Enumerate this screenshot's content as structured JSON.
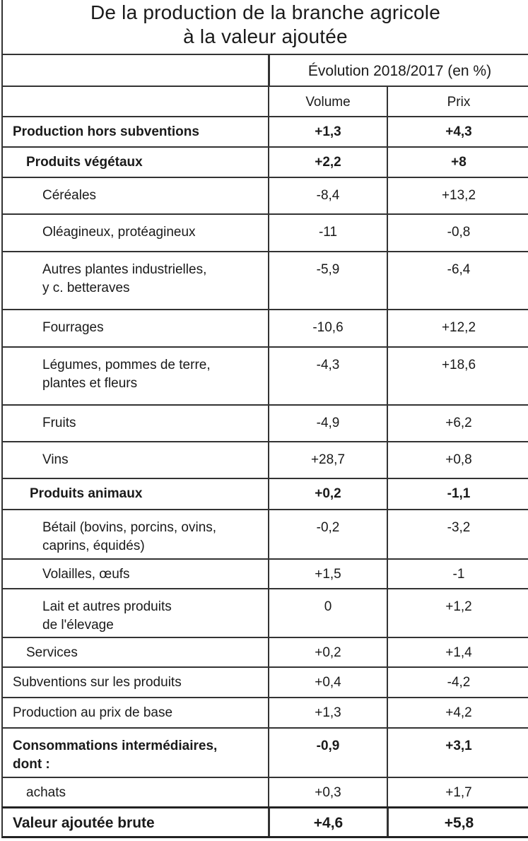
{
  "title": [
    "De la production de la branche agricole",
    "à la valeur ajoutée"
  ],
  "header": {
    "group": "Évolution 2018/2017 (en %)",
    "volume": "Volume",
    "prix": "Prix"
  },
  "rows": [
    {
      "label": [
        "Production hors subventions"
      ],
      "volume": "+1,3",
      "prix": "+4,3",
      "bold": true,
      "indent": 0
    },
    {
      "label": [
        "Produits végétaux"
      ],
      "volume": "+2,2",
      "prix": "+8",
      "bold": true,
      "indent": 1
    },
    {
      "label": [
        "Céréales"
      ],
      "volume": "-8,4",
      "prix": "+13,2",
      "bold": false,
      "indent": 2
    },
    {
      "label": [
        "Oléagineux, protéagineux"
      ],
      "volume": "-11",
      "prix": "-0,8",
      "bold": false,
      "indent": 2
    },
    {
      "label": [
        "Autres plantes industrielles,",
        "y c. betteraves"
      ],
      "volume": "-5,9",
      "prix": "-6,4",
      "bold": false,
      "indent": 2
    },
    {
      "label": [
        "Fourrages"
      ],
      "volume": "-10,6",
      "prix": "+12,2",
      "bold": false,
      "indent": 2
    },
    {
      "label": [
        "Légumes, pommes de terre,",
        "plantes et fleurs"
      ],
      "volume": "-4,3",
      "prix": "+18,6",
      "bold": false,
      "indent": 2
    },
    {
      "label": [
        "Fruits"
      ],
      "volume": "-4,9",
      "prix": "+6,2",
      "bold": false,
      "indent": 2
    },
    {
      "label": [
        "Vins"
      ],
      "volume": "+28,7",
      "prix": "+0,8",
      "bold": false,
      "indent": 2
    },
    {
      "label": [
        "Produits animaux"
      ],
      "volume": "+0,2",
      "prix": "-1,1",
      "bold": true,
      "indent": 1
    },
    {
      "label": [
        "Bétail (bovins, porcins, ovins,",
        "caprins, équidés)"
      ],
      "volume": "-0,2",
      "prix": "-3,2",
      "bold": false,
      "indent": 2
    },
    {
      "label": [
        "Volailles, œufs"
      ],
      "volume": "+1,5",
      "prix": "-1",
      "bold": false,
      "indent": 2
    },
    {
      "label": [
        "Lait et autres produits",
        "de l'élevage"
      ],
      "volume": "0",
      "prix": "+1,2",
      "bold": false,
      "indent": 2
    },
    {
      "label": [
        "Services"
      ],
      "volume": "+0,2",
      "prix": "+1,4",
      "bold": false,
      "indent": 1
    },
    {
      "label": [
        "Subventions sur les produits"
      ],
      "volume": "+0,4",
      "prix": "-4,2",
      "bold": false,
      "indent": 0
    },
    {
      "label": [
        "Production au prix de base"
      ],
      "volume": "+1,3",
      "prix": "+4,2",
      "bold": false,
      "indent": 0
    },
    {
      "label": [
        "Consommations intermédiaires,",
        "dont :"
      ],
      "volume": "-0,9",
      "prix": "+3,1",
      "bold": true,
      "indent": 0
    },
    {
      "label": [
        "achats"
      ],
      "volume": "+0,3",
      "prix": "+1,7",
      "bold": false,
      "indent": 1
    },
    {
      "label": [
        "Valeur ajoutée brute"
      ],
      "volume": "+4,6",
      "prix": "+5,8",
      "bold": true,
      "indent": 0
    }
  ]
}
